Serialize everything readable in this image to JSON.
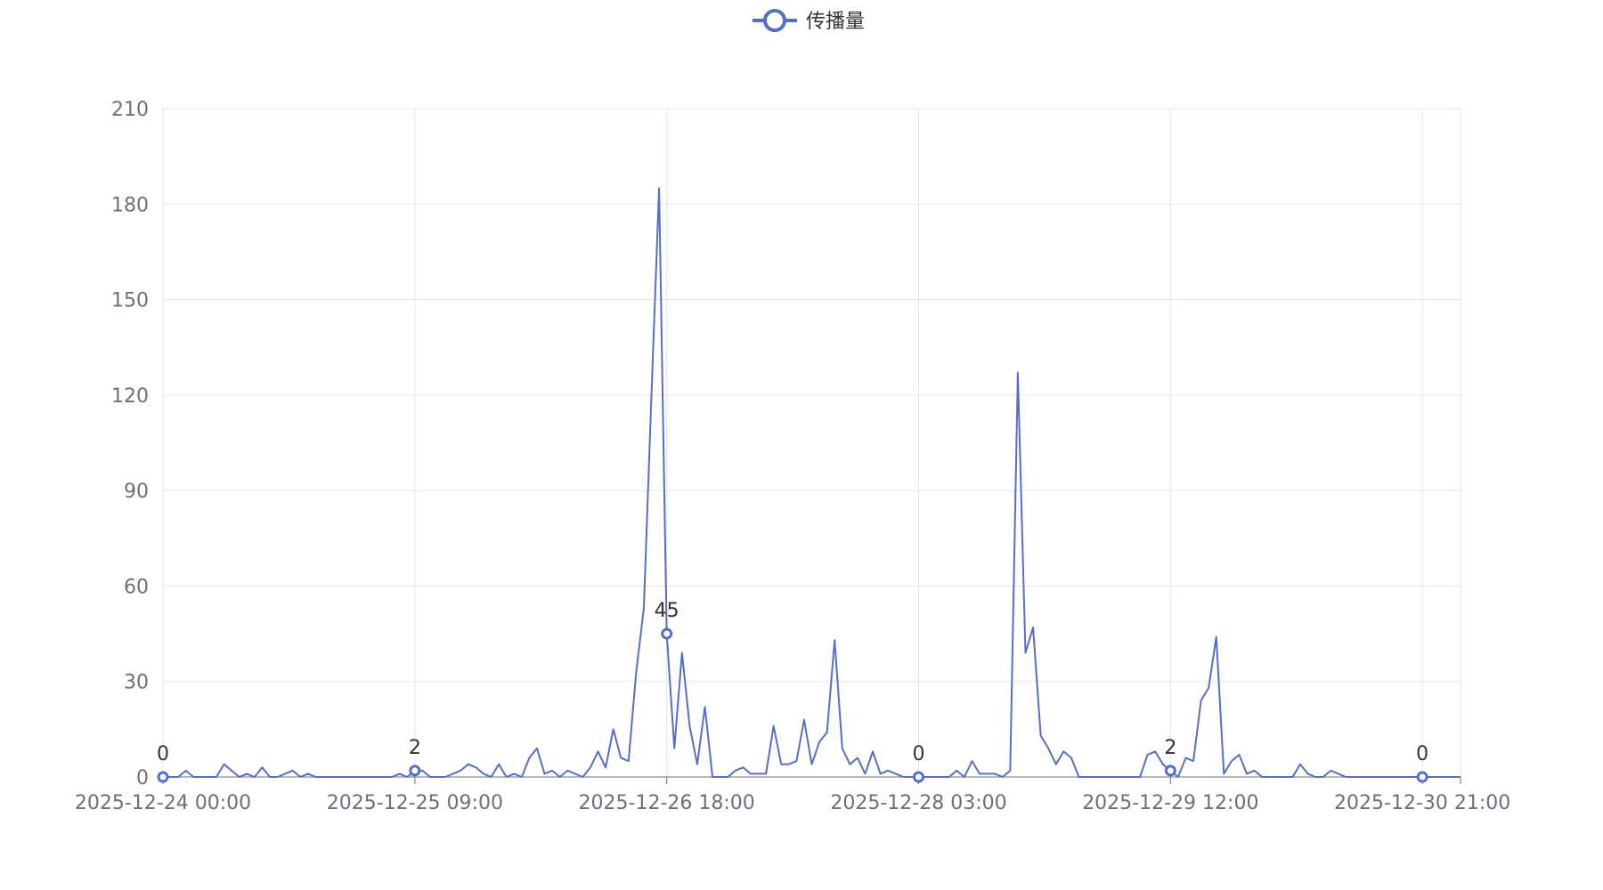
{
  "chart_data": {
    "type": "line",
    "title": "",
    "xlabel": "",
    "ylabel": "",
    "legend": {
      "position": "top-center",
      "entries": [
        "传播量"
      ]
    },
    "grid": true,
    "ylim": [
      0,
      210
    ],
    "y_ticks": [
      0,
      30,
      60,
      90,
      120,
      150,
      180,
      210
    ],
    "x_axis": {
      "start": "2025-12-24 00:00",
      "interval_hours": 1,
      "tick_every_hours": 33,
      "tick_labels": [
        "2025-12-24 00:00",
        "2025-12-25 09:00",
        "2025-12-26 18:00",
        "2025-12-28 03:00",
        "2025-12-29 12:00",
        "2025-12-30 21:00"
      ]
    },
    "series": [
      {
        "name": "传播量",
        "color": "#5470c6",
        "values": [
          0,
          0,
          0,
          2,
          0,
          0,
          0,
          0,
          4,
          2,
          0,
          1,
          0,
          3,
          0,
          0,
          1,
          2,
          0,
          1,
          0,
          0,
          0,
          0,
          0,
          0,
          0,
          0,
          0,
          0,
          0,
          1,
          0,
          2,
          2,
          0,
          0,
          0,
          1,
          2,
          4,
          3,
          1,
          0,
          4,
          0,
          1,
          0,
          6,
          9,
          1,
          2,
          0,
          2,
          1,
          0,
          3,
          8,
          3,
          15,
          6,
          5,
          33,
          53,
          120,
          185,
          45,
          9,
          39,
          16,
          4,
          22,
          0,
          0,
          0,
          2,
          3,
          1,
          1,
          1,
          16,
          4,
          4,
          5,
          18,
          4,
          11,
          14,
          43,
          9,
          4,
          6,
          1,
          8,
          1,
          2,
          1,
          0,
          0,
          0,
          0,
          0,
          0,
          0,
          2,
          0,
          5,
          1,
          1,
          1,
          0,
          2,
          127,
          39,
          47,
          13,
          9,
          4,
          8,
          6,
          0,
          0,
          0,
          0,
          0,
          0,
          0,
          0,
          0,
          7,
          8,
          4,
          2,
          0,
          6,
          5,
          24,
          28,
          44,
          1,
          5,
          7,
          1,
          2,
          0,
          0,
          0,
          0,
          0,
          4,
          1,
          0,
          0,
          2,
          1,
          0,
          0,
          0,
          0,
          0,
          0,
          0,
          0,
          0,
          0,
          0,
          0,
          0,
          0,
          0,
          0
        ],
        "labeled_points": [
          {
            "index": 0,
            "label": "0"
          },
          {
            "index": 33,
            "label": "2"
          },
          {
            "index": 66,
            "label": "45"
          },
          {
            "index": 99,
            "label": "0"
          },
          {
            "index": 132,
            "label": "2"
          },
          {
            "index": 165,
            "label": "0"
          }
        ]
      }
    ]
  }
}
